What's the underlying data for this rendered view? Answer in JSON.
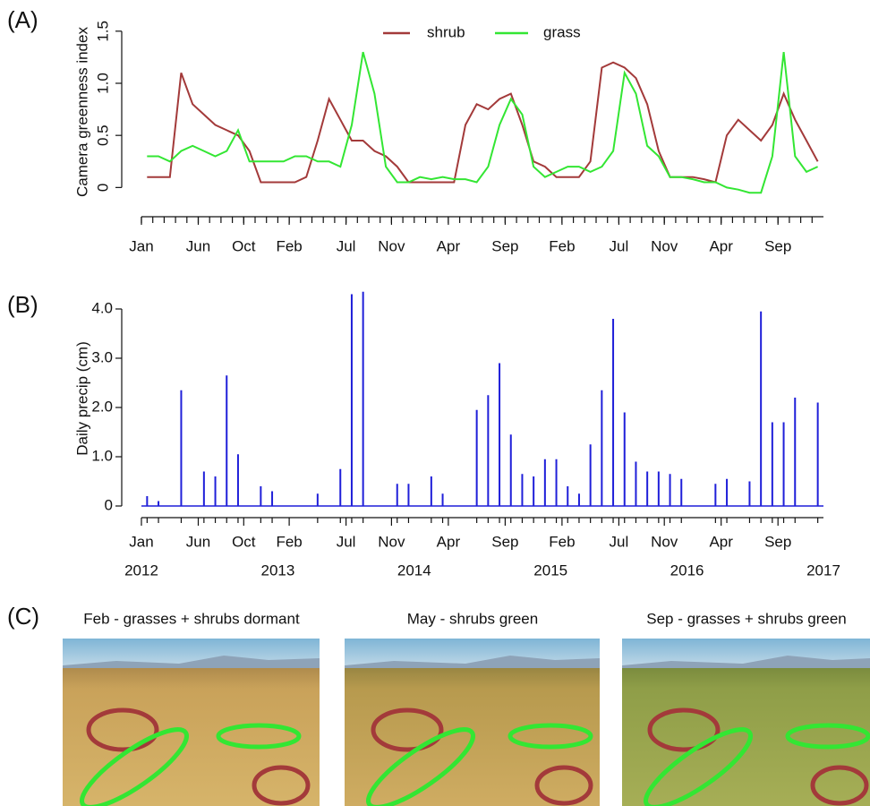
{
  "panel_labels": [
    "(A)",
    "(B)",
    "(C)"
  ],
  "photo_captions": [
    "Feb - grasses + shrubs dormant",
    "May - shrubs green",
    "Sep -  grasses + shrubs green"
  ],
  "chart_data": [
    {
      "type": "line",
      "y_label": "Camera greenness index",
      "xlim": [
        "2012-01",
        "2017-01"
      ],
      "ylim": [
        -0.1,
        1.55
      ],
      "yticks": [
        0,
        0.5,
        {
          "value": 1,
          "label": "1.0"
        },
        1.5
      ],
      "xticks": [
        {
          "value": "2012-01",
          "label": "Jan"
        },
        {
          "value": "2012-06",
          "label": "Jun"
        },
        {
          "value": "2012-10",
          "label": "Oct"
        },
        {
          "value": "2013-02",
          "label": "Feb"
        },
        {
          "value": "2013-07",
          "label": "Jul"
        },
        {
          "value": "2013-11",
          "label": "Nov"
        },
        {
          "value": "2014-04",
          "label": "Apr"
        },
        {
          "value": "2014-09",
          "label": "Sep"
        },
        {
          "value": "2015-02",
          "label": "Feb"
        },
        {
          "value": "2015-07",
          "label": "Jul"
        },
        {
          "value": "2015-11",
          "label": "Nov"
        },
        {
          "value": "2016-04",
          "label": "Apr"
        },
        {
          "value": "2016-09",
          "label": "Sep"
        }
      ],
      "x": [
        "2012-01",
        "2012-02",
        "2012-03",
        "2012-04",
        "2012-05",
        "2012-06",
        "2012-07",
        "2012-08",
        "2012-09",
        "2012-10",
        "2012-11",
        "2012-12",
        "2013-01",
        "2013-02",
        "2013-03",
        "2013-04",
        "2013-05",
        "2013-06",
        "2013-07",
        "2013-08",
        "2013-09",
        "2013-10",
        "2013-11",
        "2013-12",
        "2014-01",
        "2014-02",
        "2014-03",
        "2014-04",
        "2014-05",
        "2014-06",
        "2014-07",
        "2014-08",
        "2014-09",
        "2014-10",
        "2014-11",
        "2014-12",
        "2015-01",
        "2015-02",
        "2015-03",
        "2015-04",
        "2015-05",
        "2015-06",
        "2015-07",
        "2015-08",
        "2015-09",
        "2015-10",
        "2015-11",
        "2015-12",
        "2016-01",
        "2016-02",
        "2016-03",
        "2016-04",
        "2016-05",
        "2016-06",
        "2016-07",
        "2016-08",
        "2016-09",
        "2016-10",
        "2016-11",
        "2016-12"
      ],
      "legend": "top",
      "series": [
        {
          "name": "shrub",
          "color": "#a33a3a",
          "values": [
            0.1,
            0.1,
            0.1,
            1.1,
            0.8,
            0.7,
            0.6,
            0.55,
            0.5,
            0.35,
            0.05,
            0.05,
            0.05,
            0.05,
            0.1,
            0.45,
            0.85,
            0.65,
            0.45,
            0.45,
            0.35,
            0.3,
            0.2,
            0.05,
            0.05,
            0.05,
            0.05,
            0.05,
            0.6,
            0.8,
            0.75,
            0.85,
            0.9,
            0.6,
            0.25,
            0.2,
            0.1,
            0.1,
            0.1,
            0.25,
            1.15,
            1.2,
            1.15,
            1.05,
            0.8,
            0.35,
            0.1,
            0.1,
            0.1,
            0.08,
            0.05,
            0.5,
            0.65,
            0.55,
            0.45,
            0.6,
            0.9,
            0.65,
            0.45,
            0.25
          ]
        },
        {
          "name": "grass",
          "color": "#33e633",
          "values": [
            0.3,
            0.3,
            0.25,
            0.35,
            0.4,
            0.35,
            0.3,
            0.35,
            0.55,
            0.25,
            0.25,
            0.25,
            0.25,
            0.3,
            0.3,
            0.25,
            0.25,
            0.2,
            0.6,
            1.3,
            0.9,
            0.2,
            0.05,
            0.05,
            0.1,
            0.08,
            0.1,
            0.08,
            0.08,
            0.05,
            0.2,
            0.6,
            0.85,
            0.7,
            0.2,
            0.1,
            0.15,
            0.2,
            0.2,
            0.15,
            0.2,
            0.35,
            1.1,
            0.9,
            0.4,
            0.3,
            0.1,
            0.1,
            0.08,
            0.05,
            0.05,
            0,
            -0.02,
            -0.05,
            -0.05,
            0.3,
            1.3,
            0.3,
            0.15,
            0.2
          ]
        }
      ]
    },
    {
      "type": "bar",
      "y_label": "Daily precip (cm)",
      "color": "#1f1fd9",
      "xlim": [
        "2012-01",
        "2017-01"
      ],
      "ylim": [
        0,
        4.4
      ],
      "yticks": [
        0,
        {
          "value": 1,
          "label": "1.0"
        },
        {
          "value": 2,
          "label": "2.0"
        },
        {
          "value": 3,
          "label": "3.0"
        },
        {
          "value": 4,
          "label": "4.0"
        }
      ],
      "xticks": [
        {
          "value": "2012-01",
          "label": "Jan"
        },
        {
          "value": "2012-06",
          "label": "Jun"
        },
        {
          "value": "2012-10",
          "label": "Oct"
        },
        {
          "value": "2013-02",
          "label": "Feb"
        },
        {
          "value": "2013-07",
          "label": "Jul"
        },
        {
          "value": "2013-11",
          "label": "Nov"
        },
        {
          "value": "2014-04",
          "label": "Apr"
        },
        {
          "value": "2014-09",
          "label": "Sep"
        },
        {
          "value": "2015-02",
          "label": "Feb"
        },
        {
          "value": "2015-07",
          "label": "Jul"
        },
        {
          "value": "2015-11",
          "label": "Nov"
        },
        {
          "value": "2016-04",
          "label": "Apr"
        },
        {
          "value": "2016-09",
          "label": "Sep"
        }
      ],
      "year_ticks": [
        {
          "value": "2012-01",
          "label": "2012"
        },
        {
          "value": "2013-01",
          "label": "2013"
        },
        {
          "value": "2014-01",
          "label": "2014"
        },
        {
          "value": "2015-01",
          "label": "2015"
        },
        {
          "value": "2016-01",
          "label": "2016"
        },
        {
          "value": "2017-01",
          "label": "2017"
        }
      ],
      "x": [
        "2012-01",
        "2012-02",
        "2012-04",
        "2012-06",
        "2012-07",
        "2012-08",
        "2012-09",
        "2012-11",
        "2012-12",
        "2013-04",
        "2013-06",
        "2013-07",
        "2013-08",
        "2013-11",
        "2013-12",
        "2014-02",
        "2014-03",
        "2014-06",
        "2014-07",
        "2014-08",
        "2014-09",
        "2014-10",
        "2014-11",
        "2014-12",
        "2015-01",
        "2015-02",
        "2015-03",
        "2015-04",
        "2015-05",
        "2015-06",
        "2015-07",
        "2015-08",
        "2015-09",
        "2015-10",
        "2015-11",
        "2015-12",
        "2016-03",
        "2016-04",
        "2016-06",
        "2016-07",
        "2016-08",
        "2016-09",
        "2016-10",
        "2016-12"
      ],
      "values": [
        0.2,
        0.1,
        2.35,
        0.7,
        0.6,
        2.65,
        1.05,
        0.4,
        0.3,
        0.25,
        0.75,
        4.3,
        4.35,
        0.45,
        0.45,
        0.6,
        0.25,
        1.95,
        2.25,
        2.9,
        1.45,
        0.65,
        0.6,
        0.95,
        0.95,
        0.4,
        0.25,
        1.25,
        2.35,
        3.8,
        1.9,
        0.9,
        0.7,
        0.7,
        0.65,
        0.55,
        0.45,
        0.55,
        0.5,
        3.95,
        1.7,
        1.7,
        2.2,
        2.1
      ]
    }
  ]
}
